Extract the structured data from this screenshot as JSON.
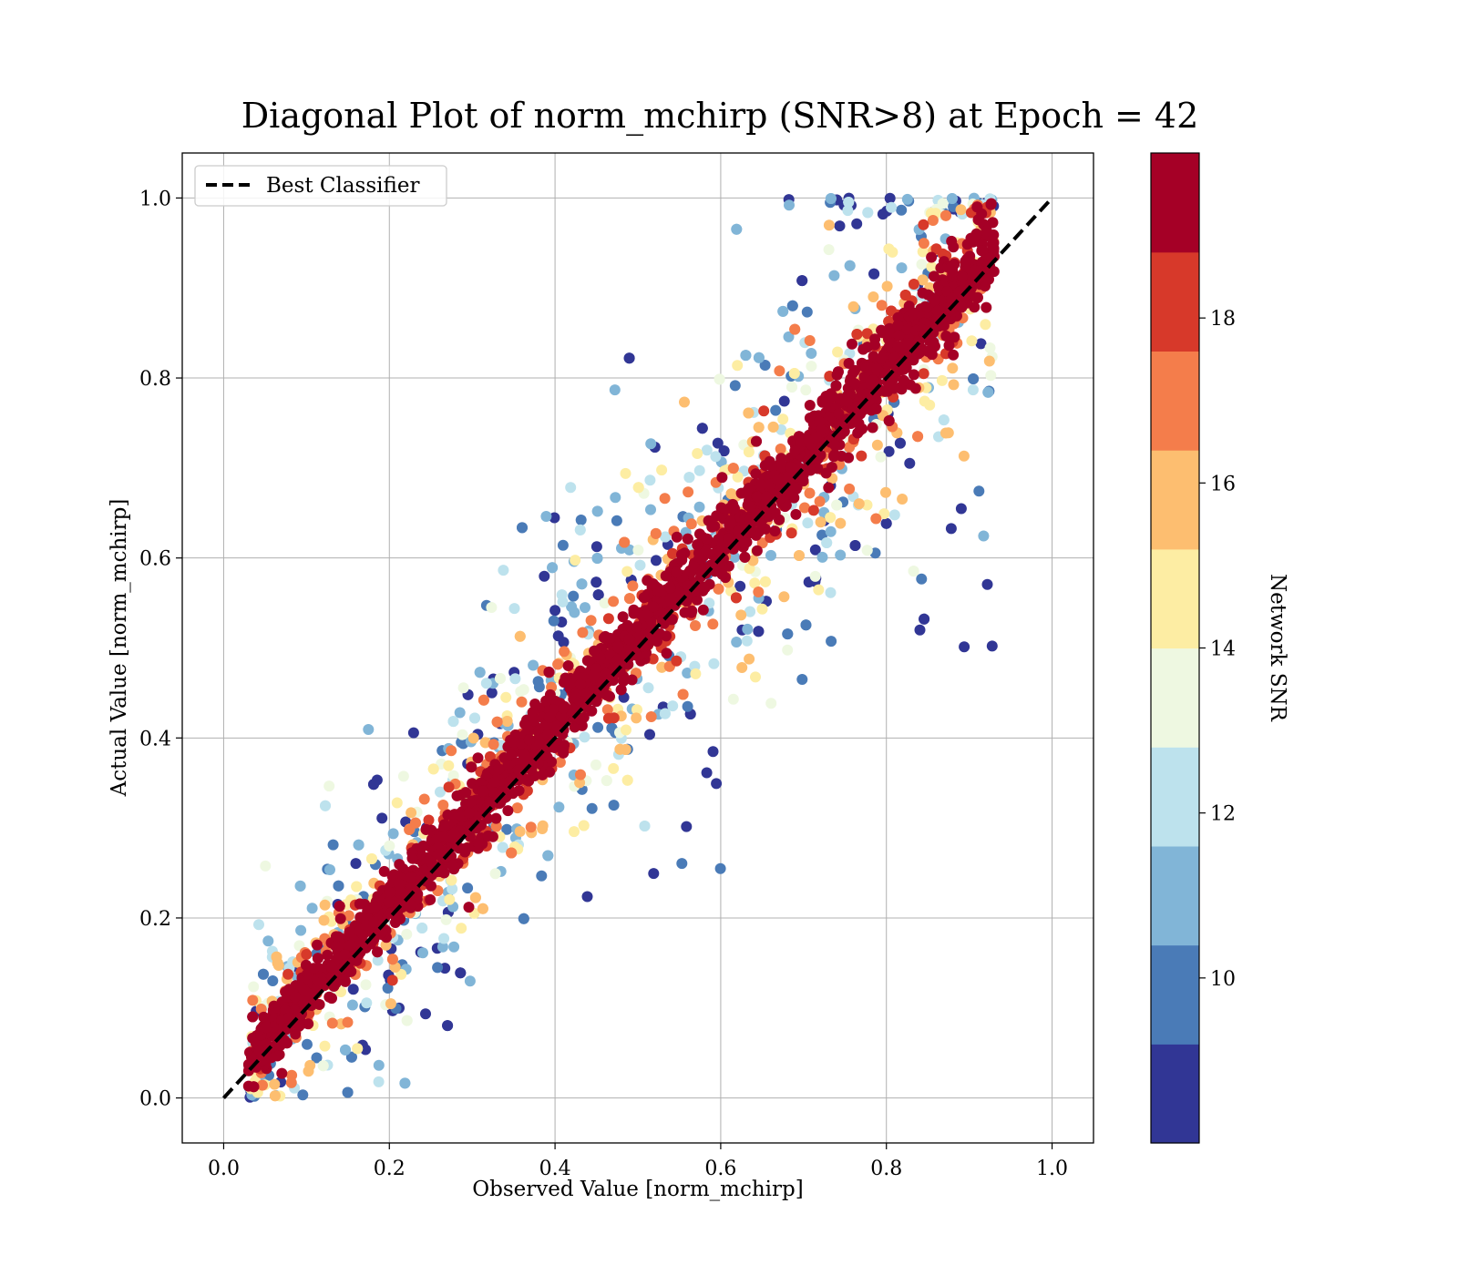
{
  "chart_data": {
    "type": "scatter",
    "title": "Diagonal Plot of norm_mchirp (SNR>8) at Epoch = 42",
    "xlabel": "Observed Value [norm_mchirp]",
    "ylabel": "Actual Value [norm_mchirp]",
    "xlim": [
      -0.05,
      1.05
    ],
    "ylim": [
      -0.05,
      1.05
    ],
    "x_ticks": [
      "0.0",
      "0.2",
      "0.4",
      "0.6",
      "0.8",
      "1.0"
    ],
    "y_ticks": [
      "0.0",
      "0.2",
      "0.4",
      "0.6",
      "0.8",
      "1.0"
    ],
    "grid": true,
    "legend": {
      "position": "top-left",
      "entries": [
        "Best Classifier"
      ]
    },
    "reference_line": {
      "name": "Best Classifier",
      "x": [
        0.0,
        1.0
      ],
      "y": [
        0.0,
        1.0
      ],
      "style": "dashed",
      "color": "#000000"
    },
    "colorbar": {
      "label": "Network SNR",
      "range": [
        8,
        20
      ],
      "ticks": [
        "10",
        "12",
        "14",
        "16",
        "18"
      ],
      "colors": [
        "#313695",
        "#4a7bb7",
        "#81b5d7",
        "#bde2ed",
        "#eef8e1",
        "#fdeda3",
        "#fdbe70",
        "#f47d4b",
        "#d7392a",
        "#a50026"
      ]
    },
    "points_description": {
      "count_approx": 20000,
      "x_range": [
        0.03,
        0.93
      ],
      "y_range": [
        0.0,
        1.0
      ],
      "trend": "y ≈ x, dense core of high SNR (18-20); scatter widens as SNR decreases"
    }
  }
}
